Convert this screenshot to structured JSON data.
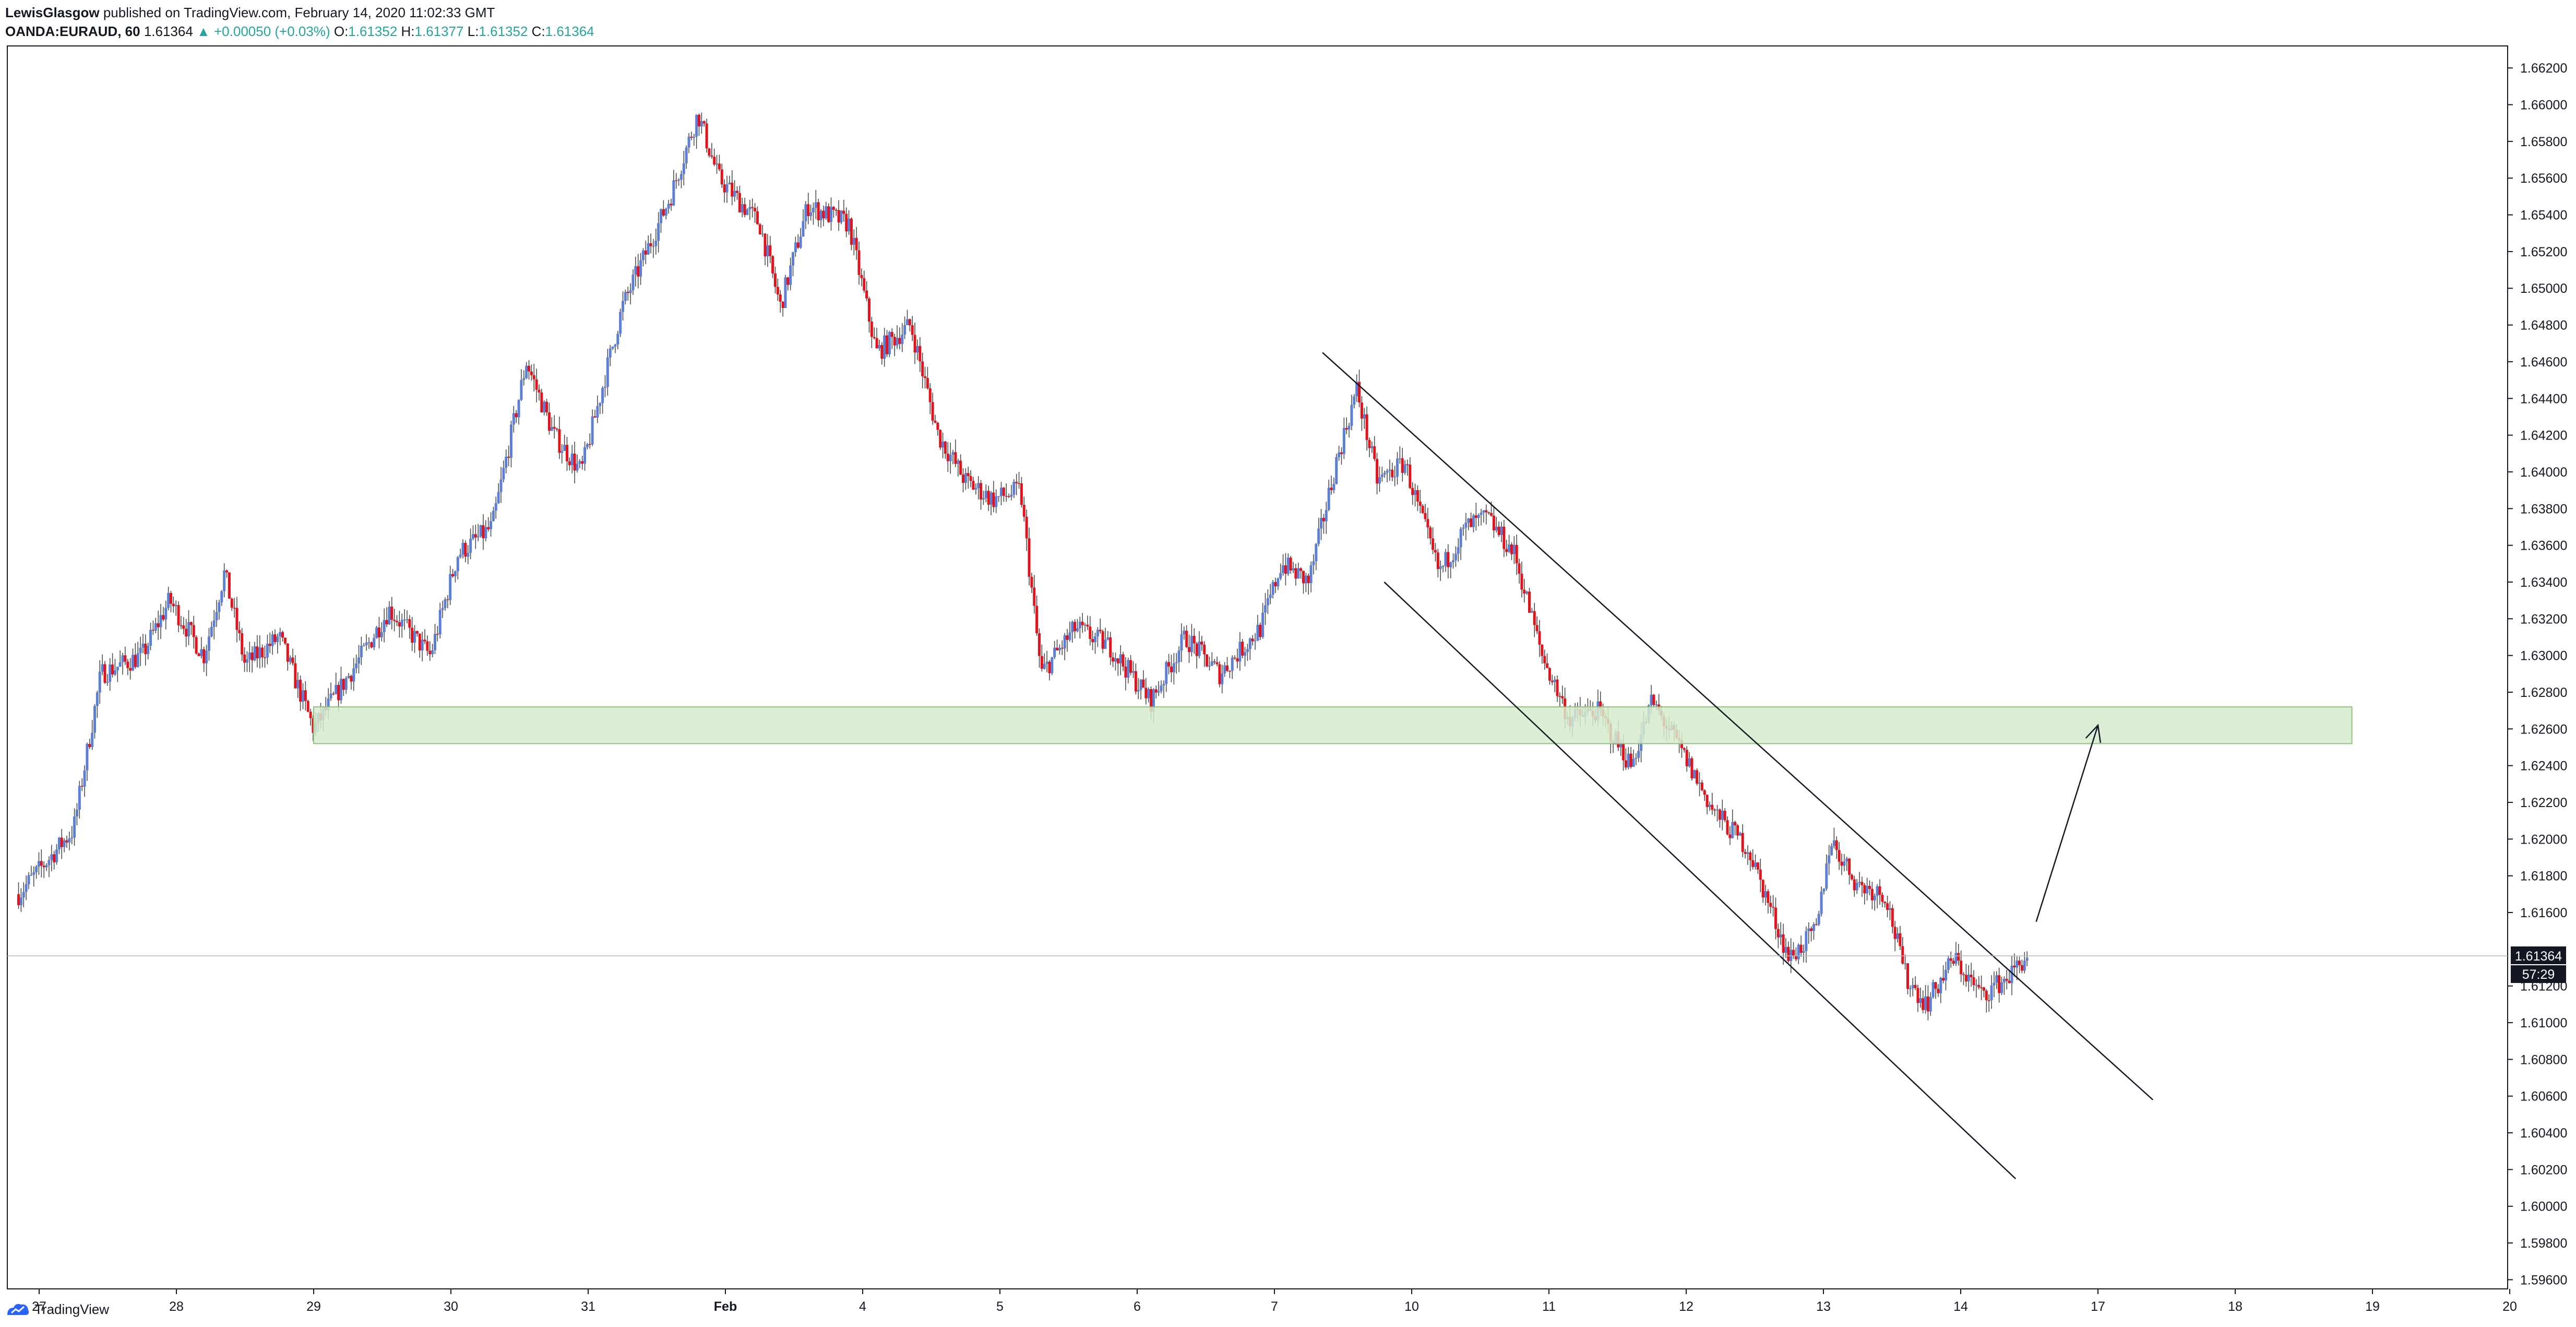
{
  "header": {
    "author": "LewisGlasgow",
    "published": " published on TradingView.com, February 14, 2020 11:02:33 GMT",
    "symbol": "OANDA:EURAUD, 60",
    "last": "1.61364",
    "change": "▲ +0.00050 (+0.03%)",
    "o_label": "O:",
    "o_value": "1.61352",
    "h_label": "H:",
    "h_value": "1.61377",
    "l_label": "L:",
    "l_value": "1.61352",
    "c_label": "C:",
    "c_value": "1.61364"
  },
  "footer": {
    "brand": "TradingView",
    "logo_icon": "tradingview-logo-icon"
  },
  "colors": {
    "up": "#5b7fd6",
    "down": "#e3121b",
    "zone_fill": "#d6ebcd",
    "zone_stroke": "#8fc27d",
    "price_label_bg": "#131722",
    "grid": "#d1d4dc",
    "text": "#131722"
  },
  "chart_data": {
    "type": "candlestick",
    "symbol": "OANDA:EURAUD",
    "interval": "60",
    "ylim": [
      1.5955,
      1.6632
    ],
    "y_ticks": [
      "1.66200",
      "1.66000",
      "1.65800",
      "1.65600",
      "1.65400",
      "1.65200",
      "1.65000",
      "1.64800",
      "1.64600",
      "1.64400",
      "1.64200",
      "1.64000",
      "1.63800",
      "1.63600",
      "1.63400",
      "1.63200",
      "1.63000",
      "1.62800",
      "1.62600",
      "1.62400",
      "1.62200",
      "1.62000",
      "1.61800",
      "1.61600",
      "1.61200",
      "1.61000",
      "1.60800",
      "1.60600",
      "1.60400",
      "1.60200",
      "1.60000",
      "1.59800",
      "1.59600"
    ],
    "x_ticks": [
      {
        "label": "27",
        "day": 0
      },
      {
        "label": "28",
        "day": 1
      },
      {
        "label": "29",
        "day": 2
      },
      {
        "label": "30",
        "day": 3
      },
      {
        "label": "31",
        "day": 4
      },
      {
        "label": "Feb",
        "day": 5
      },
      {
        "label": "4",
        "day": 6
      },
      {
        "label": "5",
        "day": 7
      },
      {
        "label": "6",
        "day": 8
      },
      {
        "label": "7",
        "day": 9
      },
      {
        "label": "10",
        "day": 10
      },
      {
        "label": "11",
        "day": 11
      },
      {
        "label": "12",
        "day": 12
      },
      {
        "label": "13",
        "day": 13
      },
      {
        "label": "14",
        "day": 14
      },
      {
        "label": "17",
        "day": 15
      },
      {
        "label": "18",
        "day": 16
      },
      {
        "label": "19",
        "day": 17
      },
      {
        "label": "20",
        "day": 18
      }
    ],
    "last_price": "1.61364",
    "countdown": "57:29",
    "path": [
      [
        -0.15,
        1.617
      ],
      [
        0.25,
        1.6205
      ],
      [
        0.45,
        1.629
      ],
      [
        0.75,
        1.63
      ],
      [
        0.95,
        1.633
      ],
      [
        1.2,
        1.63
      ],
      [
        1.35,
        1.6345
      ],
      [
        1.5,
        1.6295
      ],
      [
        1.75,
        1.631
      ],
      [
        2.0,
        1.626
      ],
      [
        2.35,
        1.63
      ],
      [
        2.55,
        1.6325
      ],
      [
        2.85,
        1.63
      ],
      [
        3.05,
        1.6355
      ],
      [
        3.3,
        1.637
      ],
      [
        3.55,
        1.646
      ],
      [
        3.75,
        1.642
      ],
      [
        3.95,
        1.64
      ],
      [
        4.05,
        1.643
      ],
      [
        4.25,
        1.649
      ],
      [
        4.6,
        1.655
      ],
      [
        4.8,
        1.6595
      ],
      [
        4.95,
        1.656
      ],
      [
        5.25,
        1.6535
      ],
      [
        5.4,
        1.649
      ],
      [
        5.6,
        1.6545
      ],
      [
        5.9,
        1.6535
      ],
      [
        6.1,
        1.6465
      ],
      [
        6.35,
        1.648
      ],
      [
        6.55,
        1.642
      ],
      [
        6.75,
        1.6395
      ],
      [
        6.95,
        1.6385
      ],
      [
        7.15,
        1.639
      ],
      [
        7.3,
        1.629
      ],
      [
        7.55,
        1.6315
      ],
      [
        7.8,
        1.6305
      ],
      [
        8.1,
        1.6275
      ],
      [
        8.35,
        1.631
      ],
      [
        8.6,
        1.629
      ],
      [
        8.9,
        1.6315
      ],
      [
        9.05,
        1.635
      ],
      [
        9.25,
        1.634
      ],
      [
        9.45,
        1.6405
      ],
      [
        9.6,
        1.6445
      ],
      [
        9.75,
        1.6395
      ],
      [
        9.95,
        1.6405
      ],
      [
        10.05,
        1.638
      ],
      [
        10.2,
        1.6345
      ],
      [
        10.4,
        1.637
      ],
      [
        10.55,
        1.6375
      ],
      [
        10.75,
        1.6355
      ],
      [
        10.95,
        1.63
      ],
      [
        11.15,
        1.6265
      ],
      [
        11.35,
        1.627
      ],
      [
        11.6,
        1.624
      ],
      [
        11.75,
        1.6275
      ],
      [
        11.95,
        1.625
      ],
      [
        12.2,
        1.6215
      ],
      [
        12.45,
        1.6195
      ],
      [
        12.75,
        1.6135
      ],
      [
        12.95,
        1.615
      ],
      [
        13.05,
        1.62
      ],
      [
        13.25,
        1.6175
      ],
      [
        13.45,
        1.617
      ],
      [
        13.6,
        1.6125
      ],
      [
        13.75,
        1.611
      ],
      [
        13.95,
        1.6135
      ],
      [
        14.15,
        1.6115
      ],
      [
        14.35,
        1.6125
      ],
      [
        14.5,
        1.6138
      ]
    ],
    "annotations": {
      "support_zone": {
        "day_start": 2.0,
        "day_end": 16.85,
        "price_low": 1.6252,
        "price_high": 1.6272
      },
      "channel_upper": {
        "from": [
          9.35,
          1.6465
        ],
        "to": [
          15.4,
          1.6058
        ]
      },
      "channel_lower": {
        "from": [
          9.8,
          1.634
        ],
        "to": [
          14.4,
          1.6015
        ]
      },
      "arrow": {
        "from": [
          14.55,
          1.6155
        ],
        "to": [
          15.0,
          1.6262
        ]
      }
    }
  }
}
